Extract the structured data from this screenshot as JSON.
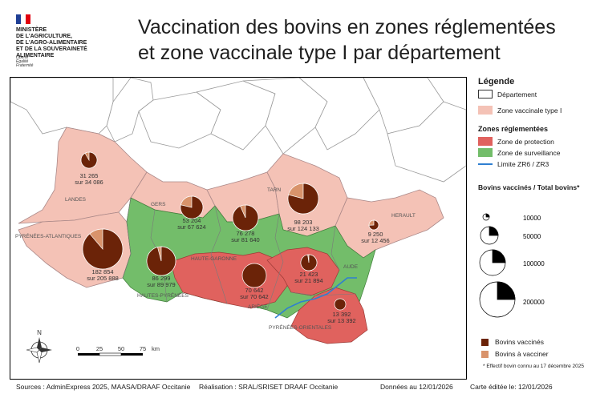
{
  "header": {
    "ministry_lines": [
      "MINISTÈRE",
      "DE L'AGRICULTURE,",
      "DE L'AGRO-ALIMENTAIRE",
      "ET DE LA SOUVERAINETÉ",
      "ALIMENTAIRE"
    ],
    "motto_lines": [
      "Liberté",
      "Égalité",
      "Fraternité"
    ],
    "title_line1": "Vaccination  des bovins en zones réglementées",
    "title_line2": "et zone vaccinale type I par département"
  },
  "colors": {
    "vaccinal_zone": "#f4c2b6",
    "protection_zone": "#e0625e",
    "surveillance_zone": "#73bd6a",
    "limit_line": "#2f7fd1",
    "vaccinated": "#6b2308",
    "to_vaccinate": "#d9936b"
  },
  "departments": [
    {
      "name": "LANDES",
      "vaccinated": "31 265",
      "total": "sur 34 086",
      "fraction": 0.917
    },
    {
      "name": "PYRÉNÉES-ATLANTIQUES",
      "vaccinated": "182 854",
      "total": "sur 205 888",
      "fraction": 0.888
    },
    {
      "name": "GERS",
      "vaccinated": "53 204",
      "total": "sur 67 624",
      "fraction": 0.787
    },
    {
      "name": "HAUTES-PYRÉNÉES",
      "vaccinated": "86 299",
      "total": "sur 89 979",
      "fraction": 0.959
    },
    {
      "name": "HAUTE-GARONNE",
      "vaccinated": "76 278",
      "total": "sur 81 640",
      "fraction": 0.934
    },
    {
      "name": "ARIÈGE",
      "vaccinated": "70 642",
      "total": "sur 70 642",
      "fraction": 1.0
    },
    {
      "name": "TARN",
      "vaccinated": "98 203",
      "total": "sur 124 133",
      "fraction": 0.791
    },
    {
      "name": "AUDE",
      "vaccinated": "21 423",
      "total": "sur 21 894",
      "fraction": 0.978
    },
    {
      "name": "HERAULT",
      "vaccinated": "9 250",
      "total": "sur 12 456",
      "fraction": 0.743
    },
    {
      "name": "PYRÉNÉES-ORIENTALES",
      "vaccinated": "13 392",
      "total": "sur 13 392",
      "fraction": 1.0
    }
  ],
  "scale": {
    "ticks": [
      "0",
      "25",
      "50",
      "75"
    ],
    "unit": "km"
  },
  "north": "N",
  "legend": {
    "title": "Légende",
    "department": "Département",
    "vaccinal_zone": "Zone vaccinale type I",
    "regulated_title": "Zones réglementées",
    "protection": "Zone de protection",
    "surveillance": "Zone de surveillance",
    "limit": "Limite ZR6 / ZR3",
    "pie_title": "Bovins vaccinés / Total bovins*",
    "sizes": [
      {
        "label": "10000",
        "fraction": 0.25
      },
      {
        "label": "50000",
        "fraction": 0.25
      },
      {
        "label": "100000",
        "fraction": 0.25
      },
      {
        "label": "200000",
        "fraction": 0.25
      }
    ],
    "vaccinated": "Bovins vaccinés",
    "to_vaccinate": "Bovins à vacciner",
    "footnote": "* Effectif bovin connu au 17 décembre 2025"
  },
  "footer": {
    "sources": "Sources : AdminExpress 2025, MAASA/DRAAF Occitanie",
    "realisation": "Réalisation : SRAL/SRISET   DRAAF Occitanie",
    "data_date": "Données au 12/01/2026",
    "edit_date": "Carte éditée le:  12/01/2026"
  }
}
